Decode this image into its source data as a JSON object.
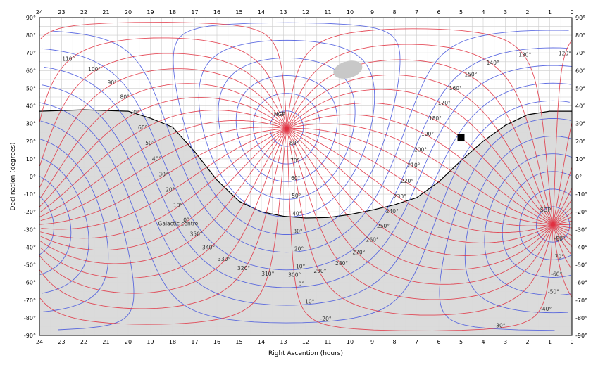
{
  "chart_data": {
    "type": "map",
    "projection": "plate-carree",
    "xlabel": "Right Ascention (hours)",
    "ylabel": "Declination (degrees)",
    "xlim": [
      24,
      0
    ],
    "ylim": [
      -90,
      90
    ],
    "x_ticks": [
      "24",
      "23",
      "22",
      "21",
      "20",
      "19",
      "18",
      "17",
      "16",
      "15",
      "14",
      "13",
      "12",
      "11",
      "10",
      "9",
      "8",
      "7",
      "6",
      "5",
      "4",
      "3",
      "2",
      "1",
      "0"
    ],
    "y_ticks_left": [
      "90°",
      "80°",
      "70°",
      "60°",
      "50°",
      "40°",
      "30°",
      "20°",
      "10°",
      "0°",
      "-10°",
      "-20°",
      "-30°",
      "-40°",
      "-50°",
      "-60°",
      "-70°",
      "-80°",
      "-90°"
    ],
    "y_ticks_right": [
      "90°",
      "80°",
      "70°",
      "60°",
      "50°",
      "40°",
      "30°",
      "20°",
      "10°",
      "0°",
      "-10°",
      "-20°",
      "-30°",
      "-40°",
      "-50°",
      "-60°",
      "-70°",
      "-80°",
      "-90°"
    ],
    "grid": true,
    "galactic_grid": {
      "latitude_color": "#4455dd",
      "longitude_color": "#e03040",
      "latitudes_deg": [
        -80,
        -70,
        -60,
        -50,
        -40,
        -30,
        -20,
        -10,
        0,
        10,
        20,
        30,
        40,
        50,
        60,
        70,
        80
      ],
      "longitudes_deg": [
        0,
        10,
        20,
        30,
        40,
        50,
        60,
        70,
        80,
        90,
        100,
        110,
        120,
        130,
        140,
        150,
        160,
        170,
        180,
        190,
        200,
        210,
        220,
        230,
        240,
        250,
        260,
        270,
        280,
        290,
        300,
        310,
        320,
        330,
        340,
        350
      ],
      "latitude_labels": [
        "80°",
        "70°",
        "60°",
        "50°",
        "40°",
        "30°",
        "20°",
        "10°",
        "0°",
        "-10°",
        "-20°",
        "-30°",
        "-40°",
        "-50°",
        "-60°",
        "-70°",
        "-80°",
        "30°",
        "40°",
        "50°",
        "60°",
        "70°",
        "60°",
        "50°",
        "40°",
        "30°",
        "20°",
        "10°",
        "0°",
        "-10°",
        "-20°",
        "-40°",
        "-50°",
        "-60°",
        "-70°",
        "-80°",
        "-90°",
        "-30°",
        "-40°",
        "-50°",
        "-60°",
        "-70°",
        "-30°",
        "-40°",
        "-50°",
        "-60°",
        "-70°",
        "-30°",
        "-20°",
        "-10°",
        "-30°",
        "-40°",
        "-50°",
        "-60°",
        "-70°"
      ],
      "longitude_labels": [
        "120°",
        "110°",
        "100°",
        "90°",
        "80°",
        "70°",
        "60°",
        "50°",
        "40°",
        "30°",
        "20°",
        "10°",
        "0°",
        "350°",
        "340°",
        "330°",
        "320°",
        "310°",
        "300°",
        "290°",
        "280°",
        "270°",
        "260°",
        "250°",
        "240°",
        "230°",
        "220°",
        "210°",
        "200°",
        "190°",
        "180°",
        "170°",
        "160°",
        "150°",
        "140°",
        "130°"
      ]
    },
    "poles": [
      {
        "label": "NGP",
        "ra_h": 12.86,
        "dec": 27.13
      },
      {
        "label": "SGP",
        "ra_h": 0.86,
        "dec": -27.13
      }
    ],
    "galactic_centre": {
      "label": "Galactic centre",
      "ra_h": 17.76,
      "dec": -28.94
    },
    "marker": {
      "shape": "square",
      "ra_h": 5.0,
      "dec": 22.0,
      "color": "#000000"
    },
    "ellipse": {
      "ra_h": 10.1,
      "dec": 60.5,
      "color": "#c8c8c8"
    },
    "horizon": {
      "fill": "#d8d8d8",
      "description_values": "shaded region below the local horizon"
    }
  },
  "colors": {
    "grid": "#cccccc",
    "horizon_fill": "#d9d9d9",
    "lat_lines": "#4455dd",
    "lon_lines": "#e03040"
  }
}
